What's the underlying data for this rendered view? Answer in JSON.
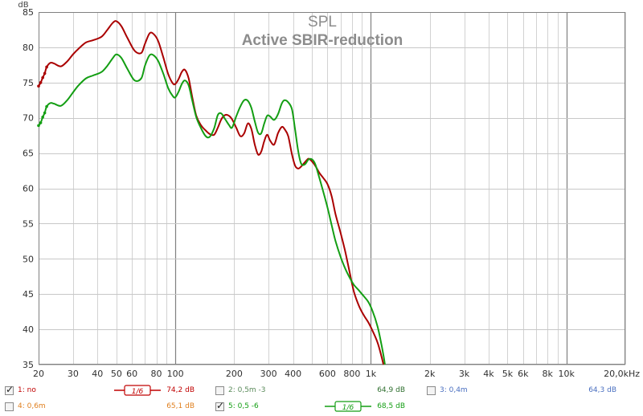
{
  "chart_data": {
    "type": "line",
    "title": "SPL",
    "subtitle": "Active SBIR-reduction",
    "ylabel": "dB",
    "xlabel": "",
    "xscale": "log",
    "xlim": [
      20,
      20000
    ],
    "ylim": [
      35,
      85
    ],
    "grid": true,
    "y_ticks": [
      "35",
      "40",
      "45",
      "50",
      "55",
      "60",
      "65",
      "70",
      "75",
      "80",
      "85"
    ],
    "x_ticks": [
      {
        "value": 20,
        "label": "20"
      },
      {
        "value": 30,
        "label": "30"
      },
      {
        "value": 40,
        "label": "40"
      },
      {
        "value": 50,
        "label": "50"
      },
      {
        "value": 60,
        "label": "60"
      },
      {
        "value": 80,
        "label": "80"
      },
      {
        "value": 100,
        "label": "100"
      },
      {
        "value": 200,
        "label": "200"
      },
      {
        "value": 300,
        "label": "300"
      },
      {
        "value": 400,
        "label": "400"
      },
      {
        "value": 600,
        "label": "600"
      },
      {
        "value": 800,
        "label": "800"
      },
      {
        "value": 1000,
        "label": "1k"
      },
      {
        "value": 2000,
        "label": "2k"
      },
      {
        "value": 3000,
        "label": "3k"
      },
      {
        "value": 4000,
        "label": "4k"
      },
      {
        "value": 5000,
        "label": "5k"
      },
      {
        "value": 6000,
        "label": "6k"
      },
      {
        "value": 8000,
        "label": "8k"
      },
      {
        "value": 10000,
        "label": "10k"
      },
      {
        "value": 20000,
        "label": "20,0kHz"
      }
    ],
    "series": [
      {
        "id": "1",
        "color": "#aa0000",
        "x": [
          20,
          20.5,
          21,
          21.5,
          22,
          23,
          24,
          26,
          28,
          30,
          32,
          35,
          38,
          42,
          45,
          48,
          50,
          53,
          57,
          62,
          67,
          70,
          74,
          78,
          82,
          87,
          92,
          97,
          100,
          104,
          108,
          112,
          117,
          122,
          128,
          135,
          143,
          150,
          158,
          165,
          172,
          180,
          188,
          195,
          205,
          215,
          225,
          235,
          245,
          255,
          265,
          275,
          285,
          295,
          305,
          320,
          335,
          350,
          362,
          378,
          395,
          410,
          425,
          440,
          460,
          480,
          500,
          520,
          545,
          570,
          600,
          630,
          660,
          700,
          740,
          780,
          820,
          870,
          920,
          970,
          1020,
          1080,
          1130,
          1160
        ],
        "y": [
          74.5,
          75,
          75.7,
          76.3,
          77.2,
          77.8,
          77.7,
          77.3,
          78,
          79,
          79.8,
          80.7,
          81,
          81.5,
          82.5,
          83.5,
          83.7,
          83,
          81.3,
          79.5,
          79.2,
          80.5,
          82,
          81.8,
          80.8,
          78.5,
          76.2,
          74.9,
          74.8,
          75.5,
          76.5,
          76.8,
          75.6,
          73,
          70.3,
          69,
          68.2,
          67.7,
          67.6,
          68.6,
          69.8,
          70.4,
          70.3,
          69.8,
          68.6,
          67.4,
          67.8,
          69.2,
          68.4,
          66.2,
          64.8,
          65.2,
          66.7,
          67.6,
          66.8,
          66.2,
          67.8,
          68.7,
          68.4,
          67.4,
          64.8,
          63.2,
          62.8,
          63.1,
          63.7,
          64.2,
          63.8,
          63.2,
          62.2,
          61.5,
          60.6,
          58.9,
          56.3,
          53.7,
          51,
          48,
          45.3,
          43.3,
          42,
          41,
          39.8,
          38.2,
          36.3,
          35
        ]
      },
      {
        "id": "5",
        "color": "#139e13",
        "x": [
          20,
          20.5,
          21,
          21.5,
          22,
          23,
          24,
          26,
          28,
          30,
          32,
          35,
          38,
          42,
          45,
          48,
          50,
          53,
          57,
          62,
          67,
          70,
          74,
          78,
          82,
          87,
          92,
          97,
          100,
          104,
          108,
          112,
          117,
          122,
          128,
          135,
          143,
          150,
          158,
          165,
          172,
          180,
          188,
          195,
          205,
          215,
          225,
          235,
          245,
          255,
          265,
          275,
          285,
          295,
          305,
          320,
          335,
          350,
          362,
          378,
          395,
          410,
          425,
          440,
          460,
          480,
          500,
          520,
          545,
          570,
          600,
          630,
          660,
          700,
          740,
          780,
          820,
          870,
          920,
          970,
          1020,
          1080,
          1130,
          1160,
          1180
        ],
        "y": [
          68.9,
          69.3,
          70.1,
          70.7,
          71.6,
          72.1,
          72,
          71.7,
          72.5,
          73.6,
          74.6,
          75.6,
          76,
          76.5,
          77.4,
          78.5,
          79,
          78.5,
          76.9,
          75.3,
          75.6,
          77.4,
          78.9,
          78.8,
          78,
          76.2,
          74.2,
          73.1,
          72.9,
          73.7,
          74.8,
          75.3,
          74.6,
          72.5,
          70.1,
          68.6,
          67.4,
          67.3,
          68.5,
          70.4,
          70.6,
          69.8,
          69,
          68.6,
          70.2,
          71.6,
          72.5,
          72.4,
          71.4,
          69.5,
          67.9,
          67.8,
          69.2,
          70.3,
          70.2,
          69.7,
          70.5,
          72,
          72.5,
          72.2,
          71.2,
          68.3,
          65.3,
          63.5,
          63.4,
          64.1,
          64.1,
          63.4,
          61.5,
          59.6,
          57.3,
          54.8,
          52.5,
          50.3,
          48.6,
          47.3,
          46.3,
          45.5,
          44.7,
          43.9,
          42.6,
          40.5,
          38,
          36.3,
          35
        ]
      }
    ],
    "legend": {
      "rows": [
        [
          {
            "checked": true,
            "label": "1: no",
            "color": "#c00000",
            "smooth": "1/6",
            "value": "74,2 dB",
            "value_color": "#c00000"
          },
          {
            "checked": false,
            "label": "2: 0,5m -3",
            "color": "#5a8a5a",
            "smooth": "",
            "value": "64,9 dB",
            "value_color": "#2f6f2f"
          },
          {
            "checked": false,
            "label": "3: 0,4m",
            "color": "#4a6fc0",
            "smooth": "",
            "value": "64,3 dB",
            "value_color": "#4a6fc0"
          }
        ],
        [
          {
            "checked": false,
            "label": "4: 0,6m",
            "color": "#e08020",
            "smooth": "",
            "value": "65,1 dB",
            "value_color": "#e08020"
          },
          {
            "checked": true,
            "label": "5: 0,5 -6",
            "color": "#139e13",
            "smooth": "1/6",
            "value": "68,5 dB",
            "value_color": "#139e13"
          }
        ]
      ]
    }
  }
}
